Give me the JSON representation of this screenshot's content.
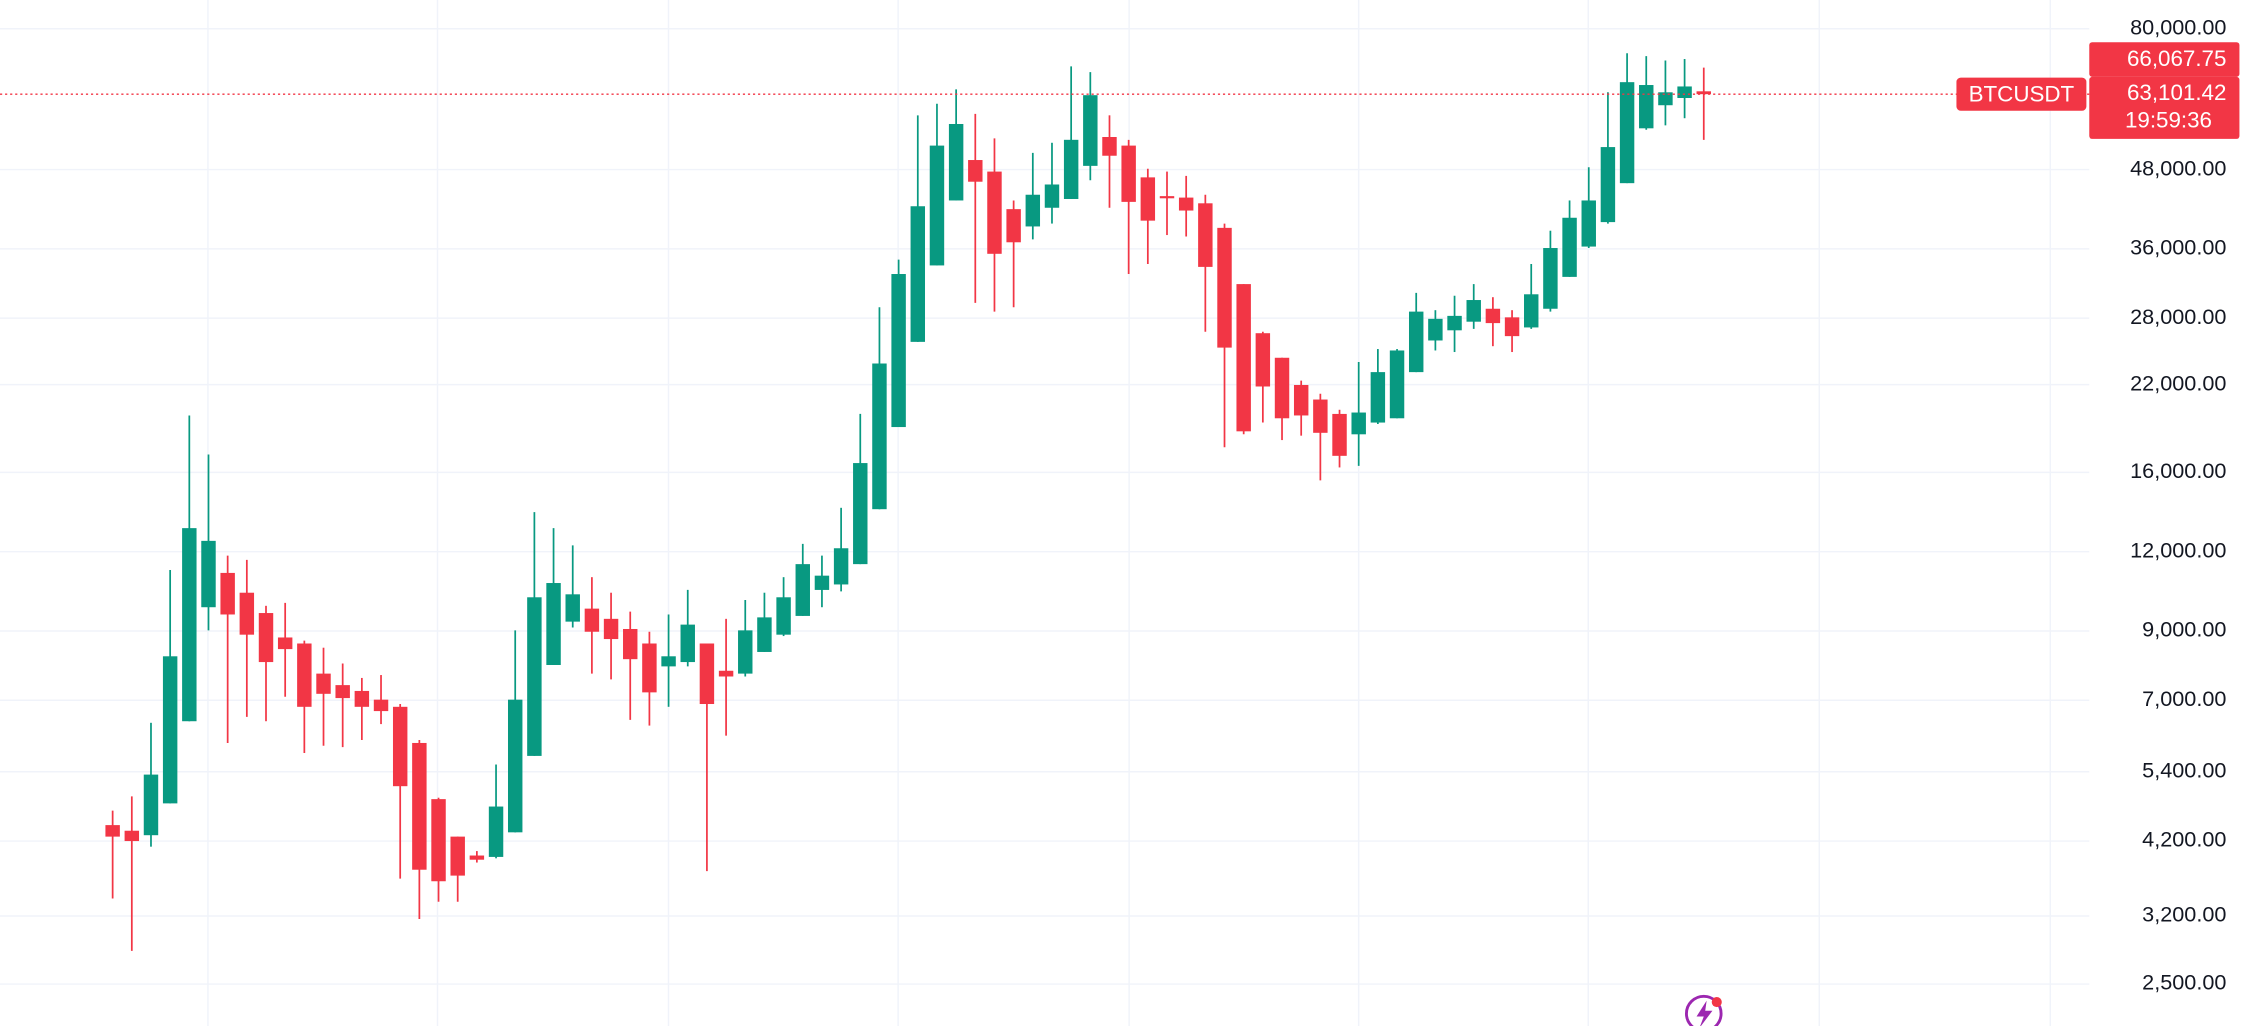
{
  "chart_data": {
    "type": "candlestick",
    "symbol": "BTCUSDT",
    "log_scale": true,
    "grid": true,
    "up_color": "#089981",
    "down_color": "#f23645",
    "ylim": [
      2147,
      88800
    ],
    "yticks": [
      {
        "value": 80000,
        "label": "80,000.00"
      },
      {
        "value": 48000,
        "label": "48,000.00"
      },
      {
        "value": 36000,
        "label": "36,000.00"
      },
      {
        "value": 28000,
        "label": "28,000.00"
      },
      {
        "value": 22000,
        "label": "22,000.00"
      },
      {
        "value": 16000,
        "label": "16,000.00"
      },
      {
        "value": 12000,
        "label": "12,000.00"
      },
      {
        "value": 9000,
        "label": "9,000.00"
      },
      {
        "value": 7000,
        "label": "7,000.00"
      },
      {
        "value": 5400,
        "label": "5,400.00"
      },
      {
        "value": 4200,
        "label": "4,200.00"
      },
      {
        "value": 3200,
        "label": "3,200.00"
      },
      {
        "value": 2500,
        "label": "2,500.00"
      }
    ],
    "open": [
      4450,
      4360,
      4290,
      4815,
      6487,
      9810,
      11110,
      10340,
      9605,
      8790,
      8600,
      7710,
      7395,
      7240,
      7015,
      6835,
      5995,
      4890,
      4268,
      3985,
      3965,
      4335,
      5720,
      7955,
      9310,
      9760,
      9405,
      9065,
      8600,
      7915,
      8040,
      8600,
      7790,
      7710,
      8340,
      8880,
      9505,
      10445,
      10655,
      11470,
      14000,
      18860,
      25690,
      33900,
      42910,
      49690,
      47650,
      41580,
      39050,
      41790,
      43140,
      48650,
      54020,
      52360,
      46660,
      43590,
      43360,
      42470,
      38850,
      31680,
      26510,
      24250,
      21970,
      20840,
      19780,
      18370,
      19170,
      19470,
      23020,
      25820,
      26790,
      27640,
      28970,
      28080,
      27070,
      28970,
      32520,
      36300,
      39670,
      45690,
      55750,
      60620,
      62230,
      63760
    ],
    "high": [
      4690,
      4940,
      6450,
      11230,
      19670,
      17070,
      11830,
      11650,
      9860,
      9965,
      8690,
      8470,
      7997,
      7590,
      7670,
      6905,
      6060,
      4915,
      4268,
      4050,
      5544,
      9020,
      13850,
      13070,
      12280,
      10940,
      10340,
      9655,
      8975,
      9555,
      10445,
      8600,
      9405,
      10070,
      10340,
      10940,
      12345,
      11830,
      14070,
      19780,
      29130,
      34620,
      58440,
      60940,
      64210,
      58740,
      53740,
      42910,
      51000,
      52900,
      69810,
      68370,
      58440,
      53470,
      48150,
      47650,
      46910,
      43810,
      39460,
      31680,
      26650,
      24250,
      22320,
      21280,
      20080,
      23880,
      25030,
      25030,
      30690,
      28820,
      30370,
      31680,
      30210,
      28820,
      34080,
      38450,
      42910,
      48400,
      63530,
      73200,
      72430,
      71300,
      71680,
      69470
    ],
    "low": [
      3410,
      2820,
      4115,
      4815,
      6487,
      9020,
      5995,
      6590,
      6487,
      7090,
      5780,
      5935,
      5905,
      6060,
      6420,
      3665,
      3165,
      3370,
      3370,
      3885,
      3945,
      4335,
      5720,
      7955,
      9115,
      7710,
      7550,
      6520,
      6385,
      6835,
      7915,
      3765,
      6156,
      7630,
      8340,
      8835,
      9505,
      9810,
      10390,
      11470,
      14000,
      18860,
      25690,
      33900,
      42910,
      29590,
      28670,
      29130,
      37260,
      39460,
      43140,
      46170,
      41790,
      32860,
      34080,
      37850,
      37650,
      26650,
      17530,
      18370,
      19170,
      17990,
      18280,
      15540,
      16290,
      16380,
      19070,
      19470,
      23020,
      24900,
      24760,
      26930,
      25290,
      24760,
      26930,
      28670,
      32520,
      36110,
      39460,
      45690,
      55460,
      56350,
      57830,
      53470
    ],
    "close": [
      4268,
      4200,
      5345,
      8210,
      13070,
      12480,
      9555,
      8880,
      8040,
      8427,
      6835,
      7165,
      7055,
      6835,
      6730,
      5125,
      3785,
      3630,
      3705,
      3925,
      4760,
      7015,
      10170,
      10710,
      10280,
      8975,
      8740,
      8125,
      7203,
      8210,
      9210,
      6905,
      7630,
      9020,
      9455,
      10170,
      11470,
      11000,
      12150,
      16550,
      23750,
      32860,
      42020,
      52360,
      56630,
      45930,
      35360,
      36870,
      43810,
      45470,
      53470,
      62870,
      50470,
      42690,
      39880,
      43360,
      41370,
      33720,
      25160,
      18570,
      21850,
      19470,
      19670,
      18470,
      16990,
      19880,
      23020,
      24900,
      28670,
      27930,
      28230,
      29900,
      27500,
      26230,
      30530,
      36110,
      40300,
      42910,
      52080,
      65910,
      65230,
      63530,
      64890,
      63101.42
    ],
    "last_price_label": "63,101.42",
    "price_box_top": "66,067.75",
    "countdown": "19:59:36"
  }
}
